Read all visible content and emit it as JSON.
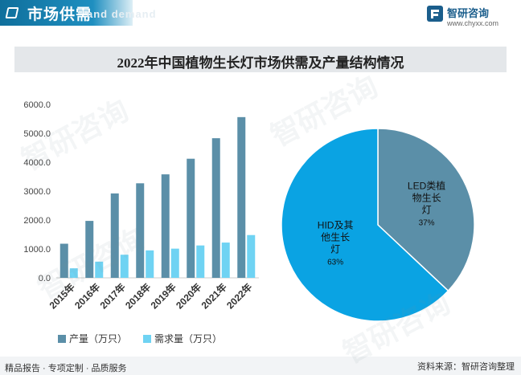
{
  "header": {
    "title": "市场供需",
    "ghost_text": "and demand"
  },
  "brand": {
    "name": "智研咨询",
    "url": "www.chyxx.com"
  },
  "title": "2022年中国植物生长灯市场供需及产量结构情况",
  "footer": {
    "left": "精品报告 · 专项定制 · 品质服务",
    "right": "资料来源：智研咨询整理"
  },
  "watermark": "智研咨询",
  "colors": {
    "header": "#1a86b8",
    "production": "#5b8fa8",
    "demand": "#6fd3f3",
    "pie_led": "#5b8fa8",
    "pie_hid": "#0aa3e3"
  },
  "chart_data": [
    {
      "type": "bar",
      "categories": [
        "2015年",
        "2016年",
        "2017年",
        "2018年",
        "2019年",
        "2020年",
        "2021年",
        "2022年"
      ],
      "series": [
        {
          "name": "产量（万只）",
          "values": [
            1180,
            1970,
            2920,
            3270,
            3580,
            4120,
            4830,
            5560
          ]
        },
        {
          "name": "需求量（万只）",
          "values": [
            330,
            560,
            800,
            950,
            1010,
            1120,
            1220,
            1480
          ]
        }
      ],
      "ylim": [
        0,
        6000
      ],
      "yticks": [
        "0.0",
        "1000.0",
        "2000.0",
        "3000.0",
        "4000.0",
        "5000.0",
        "6000.0"
      ],
      "legend": "bottom"
    },
    {
      "type": "pie",
      "slices": [
        {
          "label": "LED类植物生长灯",
          "label_lines": [
            "LED类植",
            "物生长",
            "灯"
          ],
          "value": 37,
          "pct_label": "37%"
        },
        {
          "label": "HID及其他生长灯",
          "label_lines": [
            "HID及其",
            "他生长",
            "灯"
          ],
          "value": 63,
          "pct_label": "63%"
        }
      ]
    }
  ]
}
